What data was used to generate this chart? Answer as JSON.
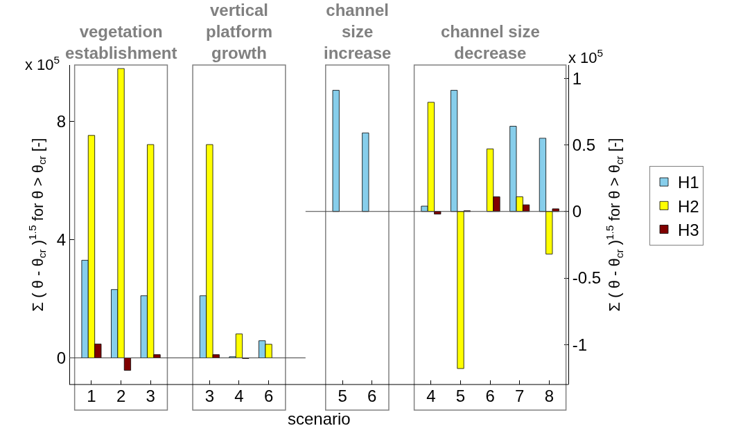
{
  "chart_data": [
    {
      "type": "bar",
      "title": "vegetation\nestablishment",
      "ylabel": "Σ ( θ - θ$_{cr}$ )$^{1.5}$ for θ > θ$_{cr}$ [-]",
      "annotations": [
        "x 10$^{5}$"
      ],
      "categories": [
        "1",
        "2",
        "3"
      ],
      "series": [
        {
          "name": "H1",
          "color": "#87ceeb",
          "values": [
            3.3,
            2.31,
            2.1
          ]
        },
        {
          "name": "H2",
          "color": "#ffff00",
          "values": [
            7.52,
            9.78,
            7.21
          ]
        },
        {
          "name": "H3",
          "color": "#800000",
          "values": [
            0.47,
            -0.42,
            0.11
          ]
        }
      ],
      "ylim": [
        -0.9,
        9.9
      ],
      "yticks": [
        0,
        4,
        8
      ],
      "legend": "right"
    },
    {
      "type": "bar",
      "title": "vertical\nplatform\ngrowth",
      "categories": [
        "3",
        "4",
        "6"
      ],
      "series": [
        {
          "color": "#87ceeb",
          "values": [
            2.1,
            0.04,
            0.58
          ]
        },
        {
          "color": "#ffff00",
          "values": [
            7.21,
            0.81,
            0.46
          ]
        },
        {
          "color": "#800000",
          "values": [
            0.11,
            -0.02,
            null
          ]
        }
      ],
      "ylim": [
        -0.9,
        9.9
      ],
      "tick_labels": "x"
    },
    {
      "type": "bar",
      "title": "channel\nsize\nincrease",
      "xlabel": "scenario",
      "categories": [
        "5",
        "6"
      ],
      "series": [
        {
          "color": "#87ceeb",
          "values": [
            0.91,
            0.59
          ]
        },
        {
          "color": "#ffff00",
          "values": [
            null,
            null
          ]
        },
        {
          "color": "#800000",
          "values": [
            null,
            null
          ]
        }
      ],
      "ylim": [
        -1.3,
        1.1
      ],
      "tick_labels": "x"
    },
    {
      "type": "bar",
      "title": "channel size\ndecrease",
      "ylabel": "Σ ( θ - θ$_{cr}$ )$^{1.5}$ for θ > θ$_{cr}$ [-]",
      "annotations": [
        "x 10$^{5}$"
      ],
      "categories": [
        "4",
        "5",
        "6",
        "7",
        "8"
      ],
      "series": [
        {
          "color": "#87ceeb",
          "values": [
            0.04,
            0.91,
            null,
            0.64,
            0.55
          ]
        },
        {
          "color": "#ffff00",
          "values": [
            0.82,
            -1.18,
            0.47,
            0.11,
            -0.32
          ]
        },
        {
          "color": "#800000",
          "values": [
            -0.02,
            0.005,
            0.11,
            0.05,
            0.02
          ]
        }
      ],
      "ylim": [
        -1.3,
        1.1
      ],
      "yticks": [
        -1,
        -0.5,
        0,
        0.5,
        1
      ]
    }
  ]
}
